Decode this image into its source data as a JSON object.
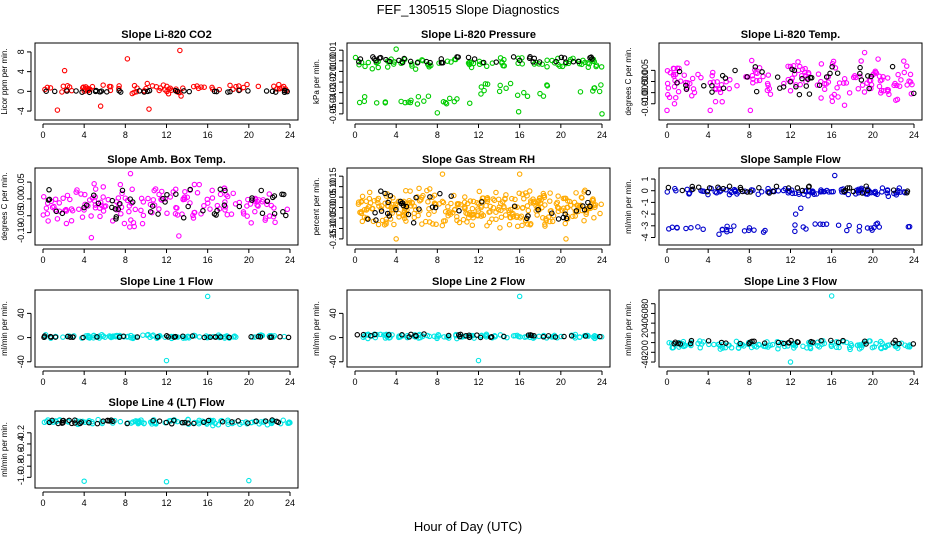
{
  "figure": {
    "title": "FEF_130515  Slope Diagnostics",
    "xlabel": "Hour of Day (UTC)"
  },
  "chart_data": [
    {
      "type": "scatter",
      "title": "Slope Li-820 CO2",
      "ylabel": "Licor ppm per min.",
      "color": "#ff0000",
      "xlim": [
        0,
        24
      ],
      "xticks": [
        "0",
        "4",
        "8",
        "12",
        "16",
        "20",
        "24"
      ],
      "ylim": [
        -5,
        9
      ],
      "yticks": [
        {
          "v": -4,
          "t": "-4"
        },
        {
          "v": 0,
          "t": "0"
        },
        {
          "v": 4,
          "t": "4"
        },
        {
          "v": 8,
          "t": "8"
        }
      ],
      "series": [
        {
          "name": "bands",
          "values": [
            [
              0,
              24,
              -0.2,
              1.5,
              0.6
            ],
            [
              7,
              14,
              -2,
              2,
              0.4
            ]
          ]
        },
        {
          "name": "outliers",
          "values": [
            [
              13.3,
              8.3
            ],
            [
              8.2,
              6.6
            ],
            [
              2.1,
              4.2
            ],
            [
              1.4,
              -3.8
            ],
            [
              5.6,
              -3
            ],
            [
              10.3,
              -3.6
            ]
          ]
        },
        {
          "name": "reference",
          "values": [
            [
              0,
              24,
              -0.2,
              0.2,
              0.5
            ]
          ]
        }
      ]
    },
    {
      "type": "scatter",
      "title": "Slope Li-820 Pressure",
      "ylabel": "kPa per min.",
      "color": "#00cc00",
      "xlim": [
        0,
        24
      ],
      "xticks": [
        "0",
        "4",
        "8",
        "12",
        "16",
        "20",
        "24"
      ],
      "ylim": [
        -0.052,
        0.013
      ],
      "yticks": [
        {
          "v": 0.01,
          "t": "0.01"
        },
        {
          "v": 0,
          "t": "0.00"
        },
        {
          "v": -0.01,
          "t": "-0.01"
        },
        {
          "v": -0.02,
          "t": "-0.02"
        },
        {
          "v": -0.03,
          "t": "-0.03"
        },
        {
          "v": -0.04,
          "t": "-0.04"
        },
        {
          "v": -0.05,
          "t": "-0.05"
        }
      ],
      "series": [
        {
          "name": "bands",
          "values": [
            [
              0,
              24,
              -0.008,
              0.004,
              0.8
            ],
            [
              0,
              12,
              -0.045,
              -0.032,
              0.4
            ],
            [
              12,
              24,
              -0.035,
              -0.02,
              0.4
            ]
          ]
        },
        {
          "name": "outliers",
          "values": [
            [
              4,
              0.011
            ],
            [
              15.9,
              -0.048
            ],
            [
              24,
              -0.05
            ],
            [
              8,
              -0.049
            ]
          ]
        },
        {
          "name": "reference",
          "values": [
            [
              0,
              24,
              -0.002,
              0.004,
              0.6
            ]
          ]
        }
      ]
    },
    {
      "type": "scatter",
      "title": "Slope Li-820 Temp.",
      "ylabel": "degrees C per min.",
      "color": "#ff00ff",
      "xlim": [
        0,
        24
      ],
      "xticks": [
        "0",
        "4",
        "8",
        "12",
        "16",
        "20",
        "24"
      ],
      "ylim": [
        -0.0155,
        0.0155
      ],
      "yticks": [
        {
          "v": 0.005,
          "t": "0.005"
        },
        {
          "v": 0,
          "t": "0.000"
        },
        {
          "v": -0.005,
          "t": "-0.005"
        },
        {
          "v": -0.01,
          "t": "-0.010"
        }
      ],
      "series": [
        {
          "name": "bands",
          "values": [
            [
              0,
              24,
              -0.011,
              0.011,
              1.5
            ]
          ]
        },
        {
          "name": "outliers",
          "values": [
            [
              0,
              -0.013
            ],
            [
              4.2,
              -0.013
            ],
            [
              8.1,
              -0.013
            ],
            [
              19.2,
              0.013
            ]
          ]
        },
        {
          "name": "reference",
          "values": [
            [
              0,
              24,
              -0.006,
              0.007,
              0.6
            ]
          ]
        }
      ]
    },
    {
      "type": "scatter",
      "title": "Slope Amb. Box Temp.",
      "ylabel": "degrees C per min.",
      "color": "#ff00ff",
      "xlim": [
        0,
        24
      ],
      "xticks": [
        "0",
        "4",
        "8",
        "12",
        "16",
        "20",
        "24"
      ],
      "ylim": [
        -0.125,
        0.08
      ],
      "yticks": [
        {
          "v": 0.05,
          "t": "0.05"
        },
        {
          "v": 0,
          "t": "0.00"
        },
        {
          "v": -0.05,
          "t": "-0.05"
        },
        {
          "v": -0.1,
          "t": "-0.10"
        }
      ],
      "series": [
        {
          "name": "bands",
          "values": [
            [
              0,
              24,
              -0.09,
              0.05,
              1.5
            ]
          ]
        },
        {
          "name": "outliers",
          "values": [
            [
              13.2,
              -0.11
            ],
            [
              8.5,
              0.075
            ],
            [
              4.7,
              -0.115
            ]
          ]
        },
        {
          "name": "reference",
          "values": [
            [
              0,
              24,
              -0.06,
              0.03,
              0.7
            ]
          ]
        }
      ]
    },
    {
      "type": "scatter",
      "title": "Slope Gas Stream RH",
      "ylabel": "percent per min.",
      "color": "#ffaa00",
      "xlim": [
        0,
        24
      ],
      "xticks": [
        "0",
        "4",
        "8",
        "12",
        "16",
        "20",
        "24"
      ],
      "ylim": [
        -0.16,
        0.17
      ],
      "yticks": [
        {
          "v": 0.15,
          "t": "0.15"
        },
        {
          "v": 0.1,
          "t": "0.10"
        },
        {
          "v": 0.05,
          "t": "0.05"
        },
        {
          "v": 0,
          "t": "0.00"
        },
        {
          "v": -0.05,
          "t": "-0.05"
        },
        {
          "v": -0.1,
          "t": "-0.10"
        },
        {
          "v": -0.15,
          "t": "-0.15"
        }
      ],
      "series": [
        {
          "name": "bands",
          "values": [
            [
              0,
              24,
              -0.1,
              0.1,
              3
            ]
          ]
        },
        {
          "name": "outliers",
          "values": [
            [
              4,
              -0.15
            ],
            [
              8.5,
              0.16
            ],
            [
              16,
              0.16
            ],
            [
              20.5,
              -0.15
            ]
          ]
        },
        {
          "name": "reference",
          "values": [
            [
              0,
              24,
              -0.08,
              0.08,
              0.6
            ]
          ]
        }
      ]
    },
    {
      "type": "scatter",
      "title": "Slope Sample Flow",
      "ylabel": "ml/min per min.",
      "color": "#0000cc",
      "xlim": [
        0,
        24
      ],
      "xticks": [
        "0",
        "4",
        "8",
        "12",
        "16",
        "20",
        "24"
      ],
      "ylim": [
        -4.3,
        1.6
      ],
      "yticks": [
        {
          "v": 1,
          "t": "1"
        },
        {
          "v": 0,
          "t": "0"
        },
        {
          "v": -1,
          "t": "-1"
        },
        {
          "v": -2,
          "t": "-2"
        },
        {
          "v": -3,
          "t": "-3"
        },
        {
          "v": -4,
          "t": "-4"
        }
      ],
      "series": [
        {
          "name": "bands",
          "values": [
            [
              0,
              24,
              -0.5,
              0.3,
              1
            ],
            [
              0,
              12,
              -3.8,
              -2.8,
              0.4
            ],
            [
              12,
              24,
              -3.6,
              -2.6,
              0.4
            ]
          ]
        },
        {
          "name": "outliers",
          "values": [
            [
              16.3,
              1.3
            ],
            [
              13,
              -1.5
            ],
            [
              12.5,
              -2
            ]
          ]
        },
        {
          "name": "reference",
          "values": [
            [
              0,
              24,
              -0.2,
              0.4,
              0.5
            ]
          ]
        }
      ]
    },
    {
      "type": "scatter",
      "title": "Slope Line 1 Flow",
      "ylabel": "ml/min per min.",
      "color": "#00e5e5",
      "xlim": [
        0,
        24
      ],
      "xticks": [
        "0",
        "4",
        "8",
        "12",
        "16",
        "20",
        "24"
      ],
      "ylim": [
        -42,
        72
      ],
      "yticks": [
        {
          "v": 40,
          "t": "40"
        },
        {
          "v": 0,
          "t": "0"
        },
        {
          "v": -40,
          "t": "-40"
        }
      ],
      "series": [
        {
          "name": "bands",
          "values": [
            [
              0,
              24,
              -2,
              5,
              1
            ]
          ]
        },
        {
          "name": "outliers",
          "values": [
            [
              16,
              68
            ],
            [
              12,
              -38
            ]
          ]
        },
        {
          "name": "reference",
          "values": [
            [
              0,
              24,
              0,
              3,
              0.5
            ]
          ]
        }
      ]
    },
    {
      "type": "scatter",
      "title": "Slope Line 2 Flow",
      "ylabel": "ml/min per min.",
      "color": "#00e5e5",
      "xlim": [
        0,
        24
      ],
      "xticks": [
        "0",
        "4",
        "8",
        "12",
        "16",
        "20",
        "24"
      ],
      "ylim": [
        -42,
        72
      ],
      "yticks": [
        {
          "v": 40,
          "t": "40"
        },
        {
          "v": 0,
          "t": "0"
        },
        {
          "v": -40,
          "t": "-40"
        }
      ],
      "series": [
        {
          "name": "bands",
          "values": [
            [
              0,
              24,
              -2,
              6,
              1
            ]
          ]
        },
        {
          "name": "outliers",
          "values": [
            [
              16,
              68
            ],
            [
              12,
              -38
            ]
          ]
        },
        {
          "name": "reference",
          "values": [
            [
              0,
              24,
              0,
              6,
              0.5
            ]
          ]
        }
      ]
    },
    {
      "type": "scatter",
      "title": "Slope Line 3 Flow",
      "ylabel": "ml/min per min.",
      "color": "#00e5e5",
      "xlim": [
        0,
        24
      ],
      "xticks": [
        "0",
        "4",
        "8",
        "12",
        "16",
        "20",
        "24"
      ],
      "ylim": [
        -42,
        100
      ],
      "yticks": [
        {
          "v": 80,
          "t": "80"
        },
        {
          "v": 60,
          "t": "60"
        },
        {
          "v": 40,
          "t": "40"
        },
        {
          "v": 20,
          "t": "20"
        },
        {
          "v": 0,
          "t": "0"
        },
        {
          "v": -20,
          "t": "-20"
        },
        {
          "v": -40,
          "t": "-40"
        }
      ],
      "series": [
        {
          "name": "bands",
          "values": [
            [
              0,
              24,
              -15,
              5,
              1.2
            ]
          ]
        },
        {
          "name": "outliers",
          "values": [
            [
              16,
              96
            ],
            [
              12,
              -40
            ]
          ]
        },
        {
          "name": "reference",
          "values": [
            [
              0,
              24,
              -3,
              5,
              0.5
            ]
          ]
        }
      ]
    },
    {
      "type": "scatter",
      "title": "Slope Line 4 (LT) Flow",
      "ylabel": "ml/min per min.",
      "color": "#00e5e5",
      "xlim": [
        0,
        24
      ],
      "xticks": [
        "0",
        "4",
        "8",
        "12",
        "16",
        "20",
        "24"
      ],
      "ylim": [
        -1.12,
        0.12
      ],
      "yticks": [
        {
          "v": -0.2,
          "t": "-0.2"
        },
        {
          "v": -0.4,
          "t": "-0.4"
        },
        {
          "v": -0.6,
          "t": "-0.6"
        },
        {
          "v": -0.8,
          "t": "-0.8"
        },
        {
          "v": -1,
          "t": "-1.0"
        }
      ],
      "series": [
        {
          "name": "bands",
          "values": [
            [
              0,
              24,
              -0.06,
              0.05,
              1
            ]
          ]
        },
        {
          "name": "outliers",
          "values": [
            [
              4,
              -1.07
            ],
            [
              12,
              -1.08
            ],
            [
              20,
              -1.06
            ],
            [
              16.5,
              -0.07
            ]
          ]
        },
        {
          "name": "reference",
          "values": [
            [
              0,
              24,
              -0.04,
              0.03,
              0.6
            ]
          ]
        }
      ]
    }
  ]
}
